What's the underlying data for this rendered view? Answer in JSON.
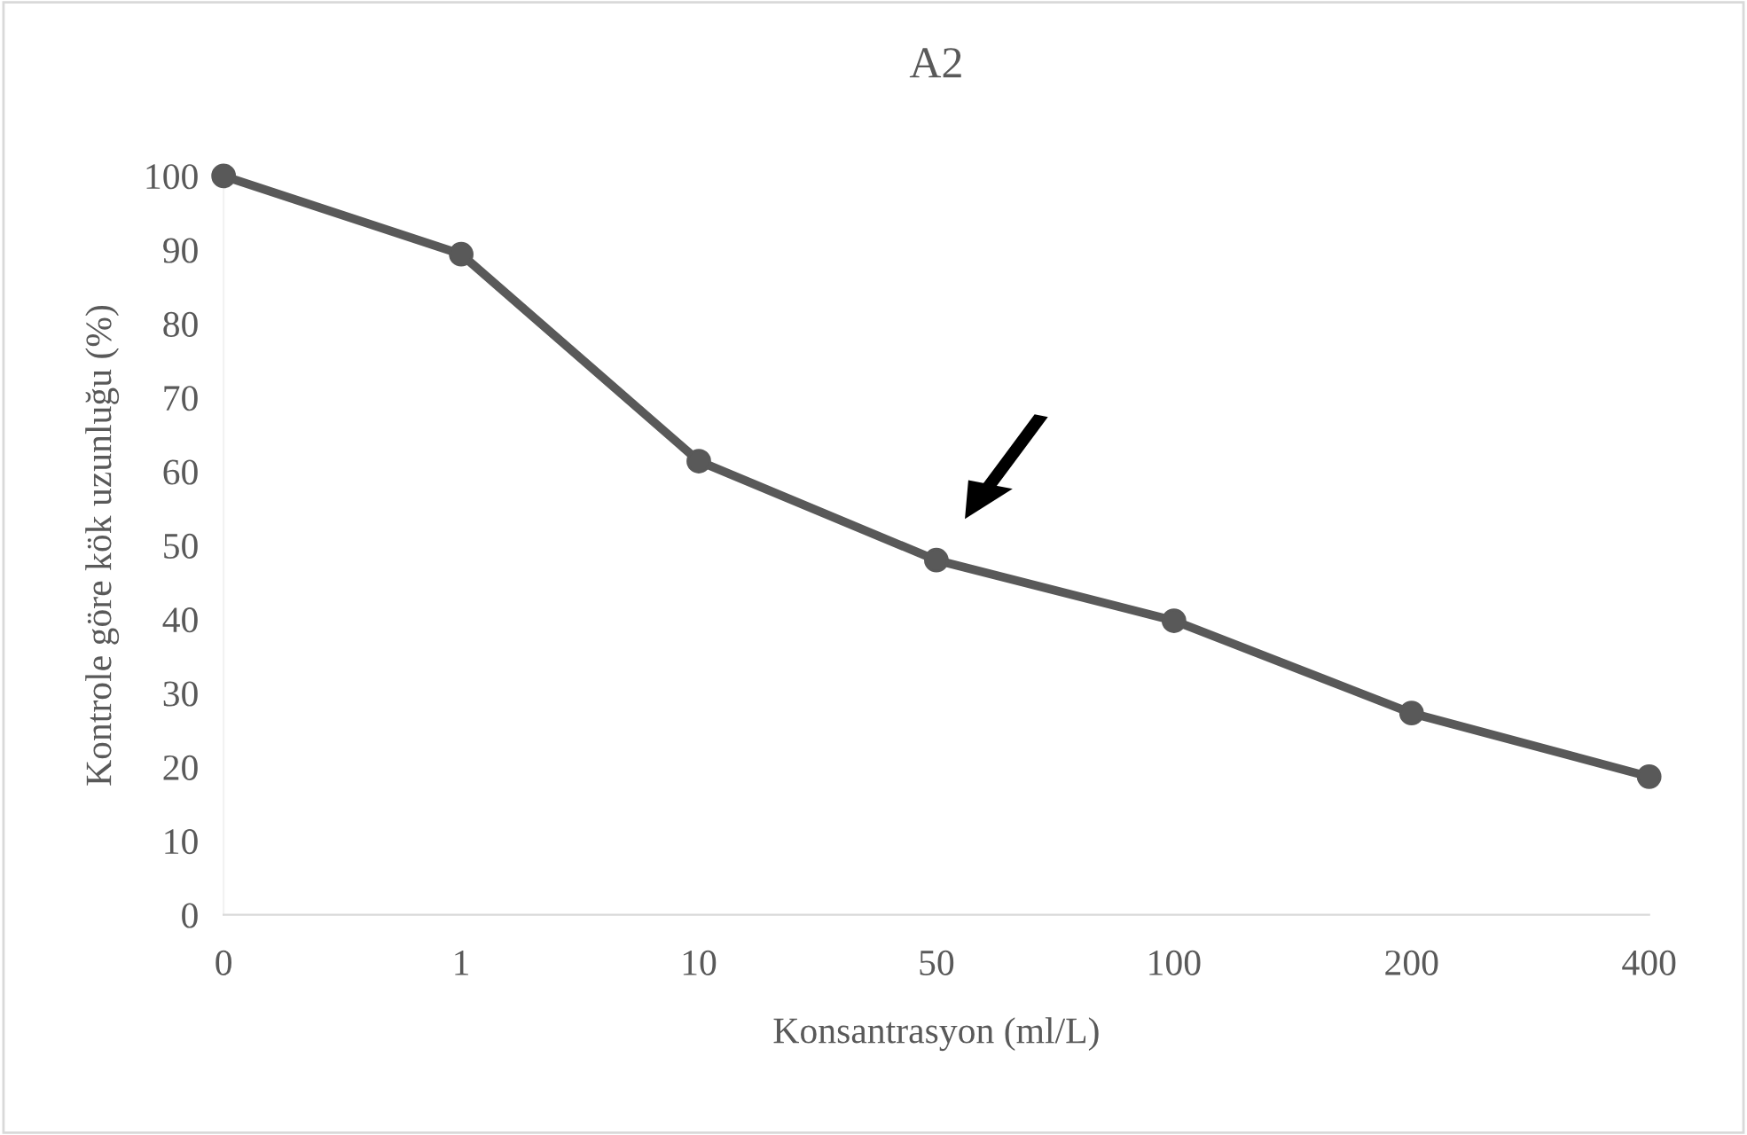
{
  "chart_data": {
    "type": "line",
    "title": "A2",
    "xlabel": "Konsantrasyon (ml/L)",
    "ylabel": "Kontrole göre kök uzunluğu (%)",
    "categories": [
      "0",
      "1",
      "10",
      "50",
      "100",
      "200",
      "400"
    ],
    "series": [
      {
        "color": "#595959",
        "values": [
          100,
          89.4,
          61.4,
          48.0,
          39.8,
          27.3,
          18.7
        ]
      }
    ],
    "ylim": [
      0,
      100
    ],
    "yticks": [
      0,
      10,
      20,
      30,
      40,
      50,
      60,
      70,
      80,
      90,
      100
    ],
    "grid": false,
    "legend": false,
    "marker": "circle",
    "line_style": "solid"
  }
}
